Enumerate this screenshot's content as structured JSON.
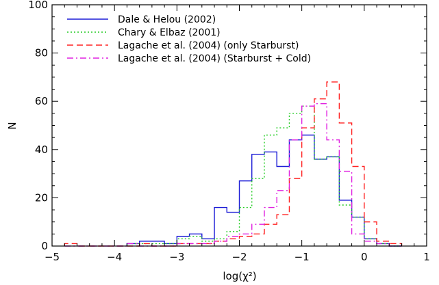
{
  "chart_data": {
    "type": "line",
    "xlabel": "log(χ²)",
    "ylabel": "N",
    "xlim": [
      -5,
      1
    ],
    "ylim": [
      0,
      100
    ],
    "x_ticks": [
      "−5",
      "−4",
      "−3",
      "−2",
      "−1",
      "0",
      "1"
    ],
    "y_ticks": [
      "0",
      "20",
      "40",
      "60",
      "80",
      "100"
    ],
    "grid": false,
    "legend_position": "top-left",
    "bin_width": 0.2,
    "series": [
      {
        "name": "Dale & Helou (2002)",
        "color": "#1a1ad6",
        "dash": "",
        "bins": [
          [
            -3.8,
            1
          ],
          [
            -3.6,
            2
          ],
          [
            -3.4,
            2
          ],
          [
            -3.2,
            1
          ],
          [
            -3.0,
            4
          ],
          [
            -2.8,
            5
          ],
          [
            -2.6,
            3
          ],
          [
            -2.4,
            16
          ],
          [
            -2.2,
            14
          ],
          [
            -2.0,
            27
          ],
          [
            -1.8,
            38
          ],
          [
            -1.6,
            39
          ],
          [
            -1.4,
            33
          ],
          [
            -1.2,
            44
          ],
          [
            -1.0,
            46
          ],
          [
            -0.8,
            36
          ],
          [
            -0.6,
            37
          ],
          [
            -0.4,
            19
          ],
          [
            -0.2,
            12
          ],
          [
            0.0,
            3
          ],
          [
            0.2,
            1
          ],
          [
            0.4,
            0
          ]
        ]
      },
      {
        "name": "Chary & Elbaz (2001)",
        "color": "#22cc22",
        "dash": "2,3",
        "bins": [
          [
            -3.8,
            1
          ],
          [
            -3.6,
            1
          ],
          [
            -3.4,
            1
          ],
          [
            -3.2,
            1
          ],
          [
            -3.0,
            3
          ],
          [
            -2.8,
            4
          ],
          [
            -2.6,
            2
          ],
          [
            -2.4,
            3
          ],
          [
            -2.2,
            6
          ],
          [
            -2.0,
            16
          ],
          [
            -1.8,
            28
          ],
          [
            -1.6,
            46
          ],
          [
            -1.4,
            49
          ],
          [
            -1.2,
            55
          ],
          [
            -1.0,
            58
          ],
          [
            -0.8,
            36
          ],
          [
            -0.6,
            37
          ],
          [
            -0.4,
            17
          ],
          [
            -0.2,
            12
          ],
          [
            0.0,
            3
          ],
          [
            0.2,
            1
          ],
          [
            0.4,
            0
          ]
        ]
      },
      {
        "name": "Lagache et al. (2004) (only Starburst)",
        "color": "#ff2020",
        "dash": "9,5",
        "bins": [
          [
            -4.8,
            1
          ],
          [
            -4.6,
            0
          ],
          [
            -4.4,
            0
          ],
          [
            -4.2,
            0
          ],
          [
            -4.0,
            0
          ],
          [
            -3.8,
            0
          ],
          [
            -3.6,
            1
          ],
          [
            -3.4,
            0
          ],
          [
            -3.2,
            0
          ],
          [
            -3.0,
            1
          ],
          [
            -2.8,
            1
          ],
          [
            -2.6,
            1
          ],
          [
            -2.4,
            2
          ],
          [
            -2.2,
            3
          ],
          [
            -2.0,
            4
          ],
          [
            -1.8,
            5
          ],
          [
            -1.6,
            9
          ],
          [
            -1.4,
            13
          ],
          [
            -1.2,
            28
          ],
          [
            -1.0,
            49
          ],
          [
            -0.8,
            61
          ],
          [
            -0.6,
            68
          ],
          [
            -0.4,
            51
          ],
          [
            -0.2,
            33
          ],
          [
            0.0,
            10
          ],
          [
            0.2,
            2
          ],
          [
            0.4,
            1
          ]
        ]
      },
      {
        "name": "Lagache et al. (2004) (Starburst + Cold)",
        "color": "#e020e0",
        "dash": "9,4,2,4",
        "bins": [
          [
            -4.8,
            0
          ],
          [
            -4.6,
            0
          ],
          [
            -4.4,
            0
          ],
          [
            -4.2,
            0
          ],
          [
            -4.0,
            0
          ],
          [
            -3.8,
            1
          ],
          [
            -3.6,
            0
          ],
          [
            -3.4,
            0
          ],
          [
            -3.2,
            0
          ],
          [
            -3.0,
            1
          ],
          [
            -2.8,
            1
          ],
          [
            -2.6,
            1
          ],
          [
            -2.4,
            2
          ],
          [
            -2.2,
            4
          ],
          [
            -2.0,
            5
          ],
          [
            -1.8,
            9
          ],
          [
            -1.6,
            16
          ],
          [
            -1.4,
            23
          ],
          [
            -1.2,
            44
          ],
          [
            -1.0,
            58
          ],
          [
            -0.8,
            59
          ],
          [
            -0.6,
            44
          ],
          [
            -0.4,
            31
          ],
          [
            -0.2,
            5
          ],
          [
            0.0,
            2
          ],
          [
            0.2,
            1
          ],
          [
            0.4,
            0
          ]
        ]
      }
    ]
  }
}
